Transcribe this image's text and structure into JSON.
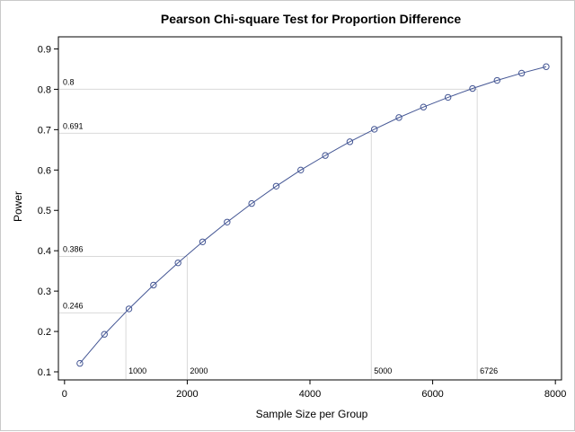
{
  "chart_data": {
    "type": "line",
    "title": "Pearson Chi-square Test for Proportion Difference",
    "xlabel": "Sample Size per Group",
    "ylabel": "Power",
    "xlim": [
      -100,
      8100
    ],
    "ylim": [
      0.08,
      0.93
    ],
    "x_ticks": [
      0,
      2000,
      4000,
      6000,
      8000
    ],
    "x_tick_labels": [
      "0",
      "2000",
      "4000",
      "6000",
      "8000"
    ],
    "y_ticks": [
      0.1,
      0.2,
      0.3,
      0.4,
      0.5,
      0.6,
      0.7,
      0.8,
      0.9
    ],
    "y_tick_labels": [
      "0.1",
      "0.2",
      "0.3",
      "0.4",
      "0.5",
      "0.6",
      "0.7",
      "0.8",
      "0.9"
    ],
    "grid": false,
    "series": [
      {
        "x": [
          250,
          650,
          1050,
          1450,
          1850,
          2250,
          2650,
          3050,
          3450,
          3850,
          4250,
          4650,
          5050,
          5450,
          5850,
          6250,
          6650,
          7050,
          7450,
          7850
        ],
        "y": [
          0.121,
          0.193,
          0.256,
          0.315,
          0.37,
          0.422,
          0.471,
          0.517,
          0.56,
          0.6,
          0.636,
          0.67,
          0.701,
          0.73,
          0.756,
          0.78,
          0.802,
          0.822,
          0.84,
          0.856
        ]
      }
    ],
    "reference_points": [
      {
        "x": 1000,
        "y": 0.246,
        "x_label": "1000",
        "y_label": "0.246"
      },
      {
        "x": 2000,
        "y": 0.386,
        "x_label": "2000",
        "y_label": "0.386"
      },
      {
        "x": 5000,
        "y": 0.691,
        "x_label": "5000",
        "y_label": "0.691"
      },
      {
        "x": 6726,
        "y": 0.8,
        "x_label": "6726",
        "y_label": "0.8"
      }
    ],
    "colors": {
      "line": "#445694",
      "marker": "#445694",
      "reference": "#d9d9d9",
      "axis": "#000000"
    }
  }
}
